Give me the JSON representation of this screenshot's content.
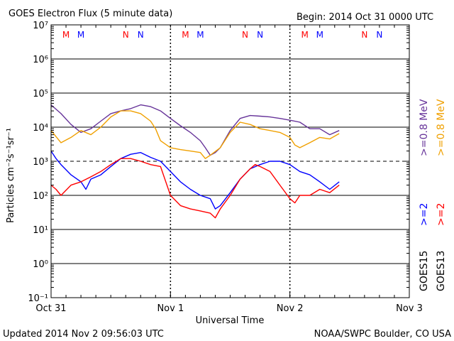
{
  "header": {
    "title": "GOES Electron Flux (5 minute data)",
    "begin": "Begin: 2014 Oct 31 0000 UTC"
  },
  "footer": {
    "updated": "Updated 2014 Nov  2 09:56:03 UTC",
    "credit": "NOAA/SWPC Boulder, CO USA"
  },
  "chart_data": {
    "type": "line",
    "title": "GOES Electron Flux (5 minute data)",
    "xlabel": "Universal Time",
    "ylabel": "Particles cm⁻²s⁻¹sr⁻¹",
    "yscale": "log",
    "ylim": [
      0.1,
      10000000
    ],
    "xlim": [
      "2014-10-31 00:00",
      "2014-11-03 00:00"
    ],
    "x_ticks": [
      {
        "t": "2014-10-31 00:00",
        "label": "Oct 31"
      },
      {
        "t": "2014-11-01 00:00",
        "label": "Nov 1"
      },
      {
        "t": "2014-11-02 00:00",
        "label": "Nov 2"
      },
      {
        "t": "2014-11-03 00:00",
        "label": "Nov 3"
      }
    ],
    "y_ticks": [
      {
        "v": 10000000,
        "label": "10⁷"
      },
      {
        "v": 1000000,
        "label": "10⁶"
      },
      {
        "v": 100000,
        "label": "10⁵"
      },
      {
        "v": 10000,
        "label": "10⁴"
      },
      {
        "v": 1000,
        "label": "10³"
      },
      {
        "v": 100,
        "label": "10²"
      },
      {
        "v": 10,
        "label": "10¹"
      },
      {
        "v": 1,
        "label": "10⁰"
      },
      {
        "v": 0.1,
        "label": "10⁻¹"
      }
    ],
    "grid": "solid horizontal lines at each decade; dashed line at 10³",
    "threshold_line": 1000,
    "legend": {
      "placement": "right",
      "items": [
        {
          "text": ">=0.8  MeV",
          "color": "#663399"
        },
        {
          "text": ">=0.8  MeV",
          "color": "#f0a000"
        },
        {
          "text": ">=2",
          "color": "#0000ff"
        },
        {
          "text": ">=2",
          "color": "#ff0000"
        },
        {
          "text": "GOES15",
          "color": "#000000"
        },
        {
          "text": "GOES13",
          "color": "#000000"
        }
      ]
    },
    "markers": [
      {
        "t": "2014-10-31 03:00",
        "label": "M",
        "color": "#ff0000"
      },
      {
        "t": "2014-10-31 06:00",
        "label": "M",
        "color": "#0000ff"
      },
      {
        "t": "2014-10-31 15:00",
        "label": "N",
        "color": "#ff0000"
      },
      {
        "t": "2014-10-31 18:00",
        "label": "N",
        "color": "#0000ff"
      },
      {
        "t": "2014-11-01 03:00",
        "label": "M",
        "color": "#ff0000"
      },
      {
        "t": "2014-11-01 06:00",
        "label": "M",
        "color": "#0000ff"
      },
      {
        "t": "2014-11-01 15:00",
        "label": "N",
        "color": "#ff0000"
      },
      {
        "t": "2014-11-01 18:00",
        "label": "N",
        "color": "#0000ff"
      },
      {
        "t": "2014-11-02 03:00",
        "label": "M",
        "color": "#ff0000"
      },
      {
        "t": "2014-11-02 06:00",
        "label": "M",
        "color": "#0000ff"
      },
      {
        "t": "2014-11-02 15:00",
        "label": "N",
        "color": "#ff0000"
      },
      {
        "t": "2014-11-02 18:00",
        "label": "N",
        "color": "#0000ff"
      }
    ],
    "series": [
      {
        "color": "#663399",
        "x": [
          "2014-10-31 00:00",
          "2014-10-31 02:00",
          "2014-10-31 04:00",
          "2014-10-31 06:00",
          "2014-10-31 08:00",
          "2014-10-31 10:00",
          "2014-10-31 12:00",
          "2014-10-31 14:00",
          "2014-10-31 16:00",
          "2014-10-31 18:00",
          "2014-10-31 20:00",
          "2014-10-31 22:00",
          "2014-11-01 00:00",
          "2014-11-01 02:00",
          "2014-11-01 04:00",
          "2014-11-01 06:00",
          "2014-11-01 07:00",
          "2014-11-01 08:00",
          "2014-11-01 09:00",
          "2014-11-01 10:00",
          "2014-11-01 12:00",
          "2014-11-01 14:00",
          "2014-11-01 16:00",
          "2014-11-01 18:00",
          "2014-11-01 20:00",
          "2014-11-01 22:00",
          "2014-11-02 00:00",
          "2014-11-02 02:00",
          "2014-11-02 04:00",
          "2014-11-02 06:00",
          "2014-11-02 08:00",
          "2014-11-02 09:55"
        ],
        "y": [
          45000,
          25000,
          12000,
          7000,
          9000,
          15000,
          25000,
          30000,
          35000,
          45000,
          40000,
          30000,
          18000,
          11000,
          7000,
          4000,
          2500,
          1500,
          1800,
          2500,
          8000,
          18000,
          22000,
          21000,
          20000,
          18000,
          16000,
          14000,
          9000,
          9000,
          6000,
          8000
        ]
      },
      {
        "color": "#f0a000",
        "x": [
          "2014-10-31 00:00",
          "2014-10-31 02:00",
          "2014-10-31 04:00",
          "2014-10-31 06:00",
          "2014-10-31 08:00",
          "2014-10-31 10:00",
          "2014-10-31 12:00",
          "2014-10-31 14:00",
          "2014-10-31 16:00",
          "2014-10-31 18:00",
          "2014-10-31 20:00",
          "2014-10-31 21:00",
          "2014-10-31 22:00",
          "2014-11-01 00:00",
          "2014-11-01 02:00",
          "2014-11-01 04:00",
          "2014-11-01 06:00",
          "2014-11-01 07:00",
          "2014-11-01 08:00",
          "2014-11-01 10:00",
          "2014-11-01 12:00",
          "2014-11-01 14:00",
          "2014-11-01 16:00",
          "2014-11-01 18:00",
          "2014-11-01 20:00",
          "2014-11-01 22:00",
          "2014-11-02 00:00",
          "2014-11-02 01:00",
          "2014-11-02 02:00",
          "2014-11-02 04:00",
          "2014-11-02 06:00",
          "2014-11-02 08:00",
          "2014-11-02 09:55"
        ],
        "y": [
          8000,
          3500,
          5000,
          8000,
          6000,
          10000,
          20000,
          30000,
          30000,
          25000,
          15000,
          9000,
          4000,
          2500,
          2200,
          2000,
          1800,
          1200,
          1500,
          2500,
          7000,
          14000,
          12000,
          9000,
          8000,
          7000,
          5000,
          3000,
          2500,
          3500,
          5000,
          4500,
          6500
        ]
      },
      {
        "color": "#0000ff",
        "x": [
          "2014-10-31 00:00",
          "2014-10-31 01:00",
          "2014-10-31 02:00",
          "2014-10-31 04:00",
          "2014-10-31 06:00",
          "2014-10-31 07:00",
          "2014-10-31 08:00",
          "2014-10-31 10:00",
          "2014-10-31 12:00",
          "2014-10-31 14:00",
          "2014-10-31 16:00",
          "2014-10-31 18:00",
          "2014-10-31 20:00",
          "2014-10-31 22:00",
          "2014-11-01 00:00",
          "2014-11-01 02:00",
          "2014-11-01 04:00",
          "2014-11-01 06:00",
          "2014-11-01 08:00",
          "2014-11-01 09:00",
          "2014-11-01 10:00",
          "2014-11-01 12:00",
          "2014-11-01 14:00",
          "2014-11-01 16:00",
          "2014-11-01 18:00",
          "2014-11-01 20:00",
          "2014-11-01 22:00",
          "2014-11-02 00:00",
          "2014-11-02 02:00",
          "2014-11-02 04:00",
          "2014-11-02 06:00",
          "2014-11-02 08:00",
          "2014-11-02 09:55"
        ],
        "y": [
          2000,
          1200,
          800,
          400,
          250,
          150,
          300,
          400,
          700,
          1200,
          1600,
          1800,
          1300,
          1000,
          500,
          250,
          150,
          100,
          80,
          40,
          50,
          120,
          300,
          600,
          800,
          1000,
          1000,
          800,
          500,
          400,
          250,
          150,
          250
        ]
      },
      {
        "color": "#ff0000",
        "x": [
          "2014-10-31 00:00",
          "2014-10-31 01:00",
          "2014-10-31 02:00",
          "2014-10-31 04:00",
          "2014-10-31 06:00",
          "2014-10-31 08:00",
          "2014-10-31 10:00",
          "2014-10-31 12:00",
          "2014-10-31 14:00",
          "2014-10-31 16:00",
          "2014-10-31 18:00",
          "2014-10-31 20:00",
          "2014-10-31 22:00",
          "2014-11-01 00:00",
          "2014-11-01 02:00",
          "2014-11-01 04:00",
          "2014-11-01 06:00",
          "2014-11-01 08:00",
          "2014-11-01 09:00",
          "2014-11-01 10:00",
          "2014-11-01 12:00",
          "2014-11-01 14:00",
          "2014-11-01 16:00",
          "2014-11-01 17:00",
          "2014-11-01 18:00",
          "2014-11-01 20:00",
          "2014-11-01 22:00",
          "2014-11-02 00:00",
          "2014-11-02 01:00",
          "2014-11-02 02:00",
          "2014-11-02 04:00",
          "2014-11-02 06:00",
          "2014-11-02 08:00",
          "2014-11-02 09:55"
        ],
        "y": [
          200,
          150,
          100,
          200,
          250,
          350,
          500,
          800,
          1200,
          1200,
          1000,
          800,
          700,
          100,
          50,
          40,
          35,
          30,
          22,
          40,
          100,
          300,
          600,
          800,
          700,
          500,
          200,
          80,
          60,
          100,
          100,
          150,
          120,
          200
        ]
      }
    ]
  }
}
